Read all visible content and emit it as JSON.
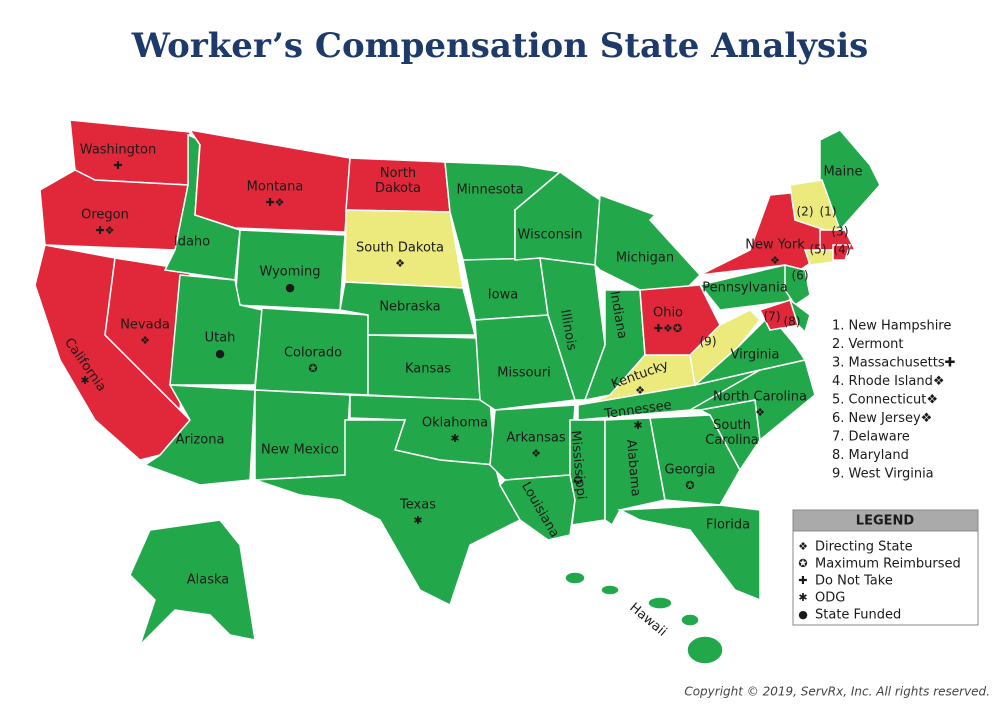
{
  "title": "Worker’s Compensation State Analysis",
  "states": [
    {
      "name": "Washington",
      "symbols": "✚"
    },
    {
      "name": "Oregon",
      "symbols": "✚❖"
    },
    {
      "name": "California",
      "symbols": "✱"
    },
    {
      "name": "Nevada",
      "symbols": "❖"
    },
    {
      "name": "Idaho"
    },
    {
      "name": "Montana",
      "symbols": "✚❖"
    },
    {
      "name": "Wyoming",
      "symbols": "●"
    },
    {
      "name": "Utah",
      "symbols": "●"
    },
    {
      "name": "Colorado",
      "symbols": "✪"
    },
    {
      "name": "Arizona"
    },
    {
      "name": "New Mexico"
    },
    {
      "name": "North Dakota"
    },
    {
      "name": "South Dakota",
      "symbols": "❖"
    },
    {
      "name": "Nebraska"
    },
    {
      "name": "Kansas"
    },
    {
      "name": "Oklahoma",
      "symbols": "✱"
    },
    {
      "name": "Texas",
      "symbols": "✱"
    },
    {
      "name": "Minnesota"
    },
    {
      "name": "Iowa"
    },
    {
      "name": "Missouri"
    },
    {
      "name": "Arkansas",
      "symbols": "❖"
    },
    {
      "name": "Louisiana"
    },
    {
      "name": "Wisconsin"
    },
    {
      "name": "Illinois"
    },
    {
      "name": "Mississippi",
      "symbols": "✪"
    },
    {
      "name": "Michigan"
    },
    {
      "name": "Indiana"
    },
    {
      "name": "Ohio",
      "symbols": "✚❖✪"
    },
    {
      "name": "Kentucky",
      "symbols": "❖"
    },
    {
      "name": "Tennessee",
      "symbols": "✱"
    },
    {
      "name": "Alabama"
    },
    {
      "name": "Georgia",
      "symbols": "✪"
    },
    {
      "name": "Florida"
    },
    {
      "name": "South Carolina"
    },
    {
      "name": "North Carolina",
      "symbols": "❖"
    },
    {
      "name": "Virginia"
    },
    {
      "name": "Pennsylvania"
    },
    {
      "name": "New York",
      "symbols": "❖"
    },
    {
      "name": "Maine"
    },
    {
      "name": "Alaska"
    },
    {
      "name": "Hawaii"
    }
  ],
  "markers": [
    "(1)",
    "(2)",
    "(3)",
    "(4)",
    "(5)",
    "(6)",
    "(7)",
    "(8)",
    "(9)"
  ],
  "numbered_list": [
    "1. New Hampshire",
    "2. Vermont",
    "3. Massachusetts✚",
    "4. Rhode Island❖",
    "5. Connecticut❖",
    "6. New Jersey❖",
    "7. Delaware",
    "8. Maryland",
    "9. West Virginia"
  ],
  "legend": {
    "title": "LEGEND",
    "items": [
      {
        "symbol": "❖",
        "label": "Directing State"
      },
      {
        "symbol": "✪",
        "label": "Maximum Reimbursed"
      },
      {
        "symbol": "✚",
        "label": "Do Not Take"
      },
      {
        "symbol": "✱",
        "label": "ODG"
      },
      {
        "symbol": "●",
        "label": "State Funded"
      }
    ]
  },
  "copyright": "Copyright © 2019, ServRx, Inc. All rights reserved."
}
